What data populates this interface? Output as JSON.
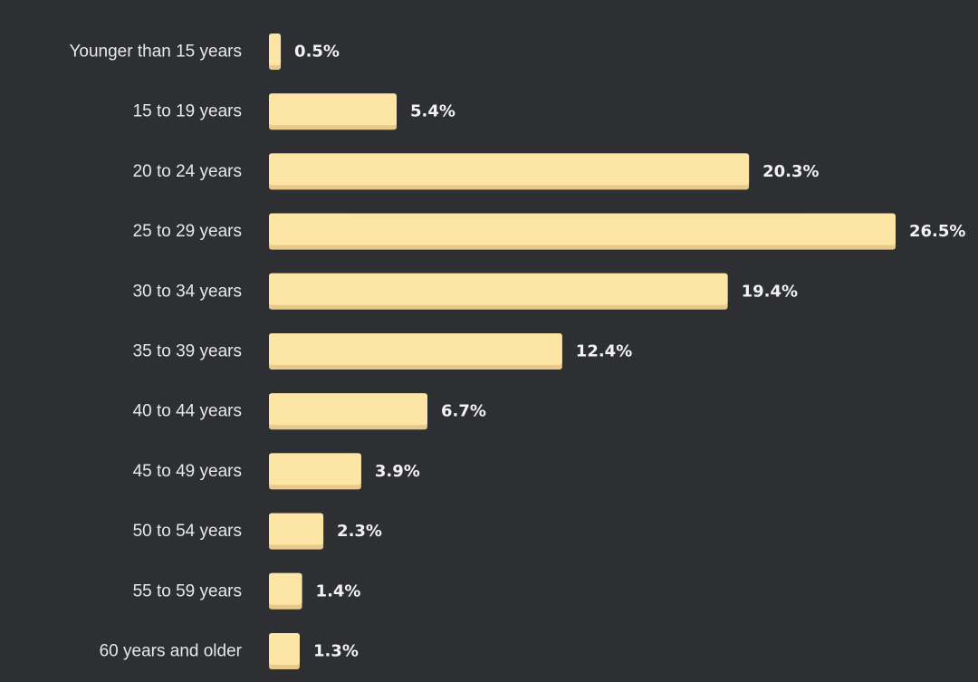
{
  "chart_data": {
    "type": "bar",
    "orientation": "horizontal",
    "categories": [
      "Younger than 15 years",
      "15 to 19 years",
      "20 to 24 years",
      "25 to 29 years",
      "30 to 34 years",
      "35 to 39 years",
      "40 to 44 years",
      "45 to 49 years",
      "50 to 54 years",
      "55 to 59 years",
      "60 years and older"
    ],
    "values": [
      0.5,
      5.4,
      20.3,
      26.5,
      19.4,
      12.4,
      6.7,
      3.9,
      2.3,
      1.4,
      1.3
    ],
    "value_labels": [
      "0.5%",
      "5.4%",
      "20.3%",
      "26.5%",
      "19.4%",
      "12.4%",
      "6.7%",
      "3.9%",
      "2.3%",
      "1.4%",
      "1.3%"
    ],
    "title": "",
    "xlabel": "",
    "ylabel": "",
    "xlim": [
      0,
      26.5
    ],
    "grid": false,
    "legend": "none",
    "colors": {
      "background": "#2d2f33",
      "bar": "#fde5a6",
      "bar_shadow": "#e9c98a",
      "category_text": "#e8e8e8",
      "value_text": "#f2f2f2"
    }
  }
}
